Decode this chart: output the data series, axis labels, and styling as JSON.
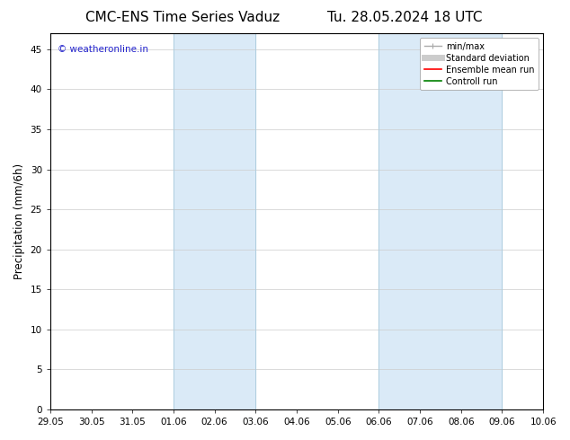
{
  "title": "CMC-ENS Time Series Vaduz",
  "title_right": "Tu. 28.05.2024 18 UTC",
  "ylabel": "Precipitation (mm/6h)",
  "watermark": "© weatheronline.in",
  "ylim_bottom": 0,
  "ylim_top": 47,
  "yticks": [
    0,
    5,
    10,
    15,
    20,
    25,
    30,
    35,
    40,
    45
  ],
  "xtick_labels": [
    "29.05",
    "30.05",
    "31.05",
    "01.06",
    "02.06",
    "03.06",
    "04.06",
    "05.06",
    "06.06",
    "07.06",
    "08.06",
    "09.06",
    "10.06"
  ],
  "shaded_regions": [
    {
      "xmin": 3,
      "xmax": 5,
      "color": "#daeaf7"
    },
    {
      "xmin": 8,
      "xmax": 11,
      "color": "#daeaf7"
    }
  ],
  "shaded_border_color": "#b0cfe0",
  "legend_items": [
    {
      "label": "min/max",
      "color": "#aaaaaa",
      "lw": 1.0
    },
    {
      "label": "Standard deviation",
      "color": "#cccccc",
      "lw": 5
    },
    {
      "label": "Ensemble mean run",
      "color": "red",
      "lw": 1.2
    },
    {
      "label": "Controll run",
      "color": "green",
      "lw": 1.2
    }
  ],
  "bg_color": "#ffffff",
  "plot_bg_color": "#ffffff",
  "grid_color": "#cccccc",
  "title_fontsize": 11,
  "tick_fontsize": 7.5,
  "ylabel_fontsize": 8.5,
  "legend_fontsize": 7,
  "watermark_color": "#2222cc",
  "watermark_fontsize": 7.5
}
